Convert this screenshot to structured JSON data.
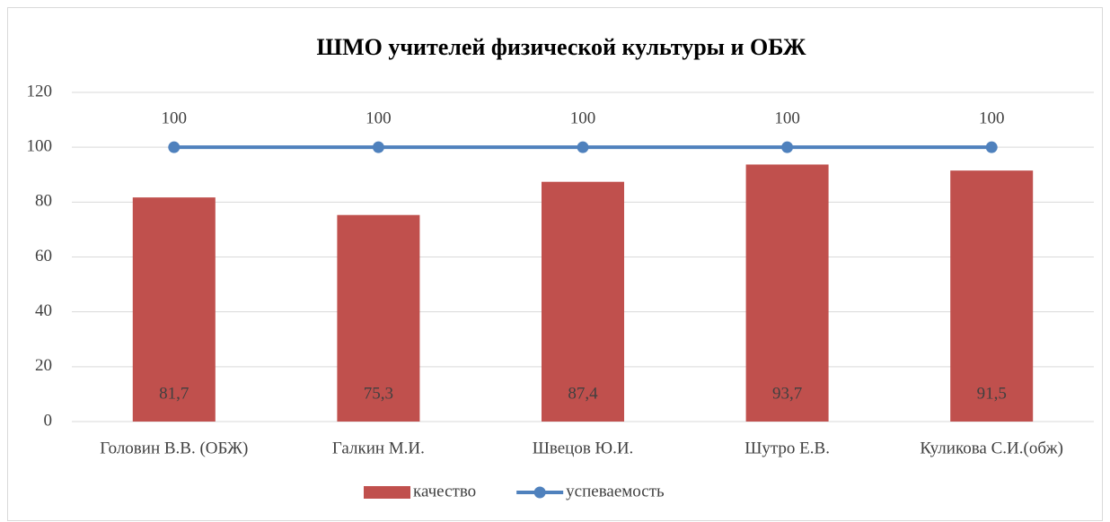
{
  "chart_data": {
    "type": "bar",
    "title": "ШМО учителей физической культуры и ОБЖ",
    "categories": [
      "Головин В.В. (ОБЖ)",
      "Галкин М.И.",
      "Швецов Ю.И.",
      "Шутро Е.В.",
      "Куликова С.И.(обж)"
    ],
    "series": [
      {
        "name": "качество",
        "type": "bar",
        "color": "#c0504d",
        "values": [
          81.7,
          75.3,
          87.4,
          93.7,
          91.5
        ],
        "value_labels": [
          "81,7",
          "75,3",
          "87,4",
          "93,7",
          "91,5"
        ]
      },
      {
        "name": "успеваемость",
        "type": "line",
        "color": "#4f81bd",
        "values": [
          100,
          100,
          100,
          100,
          100
        ]
      }
    ],
    "ylim": [
      0,
      120
    ],
    "yticks": [
      0,
      20,
      40,
      60,
      80,
      100,
      120
    ],
    "grid": true,
    "legend": "bottom"
  }
}
